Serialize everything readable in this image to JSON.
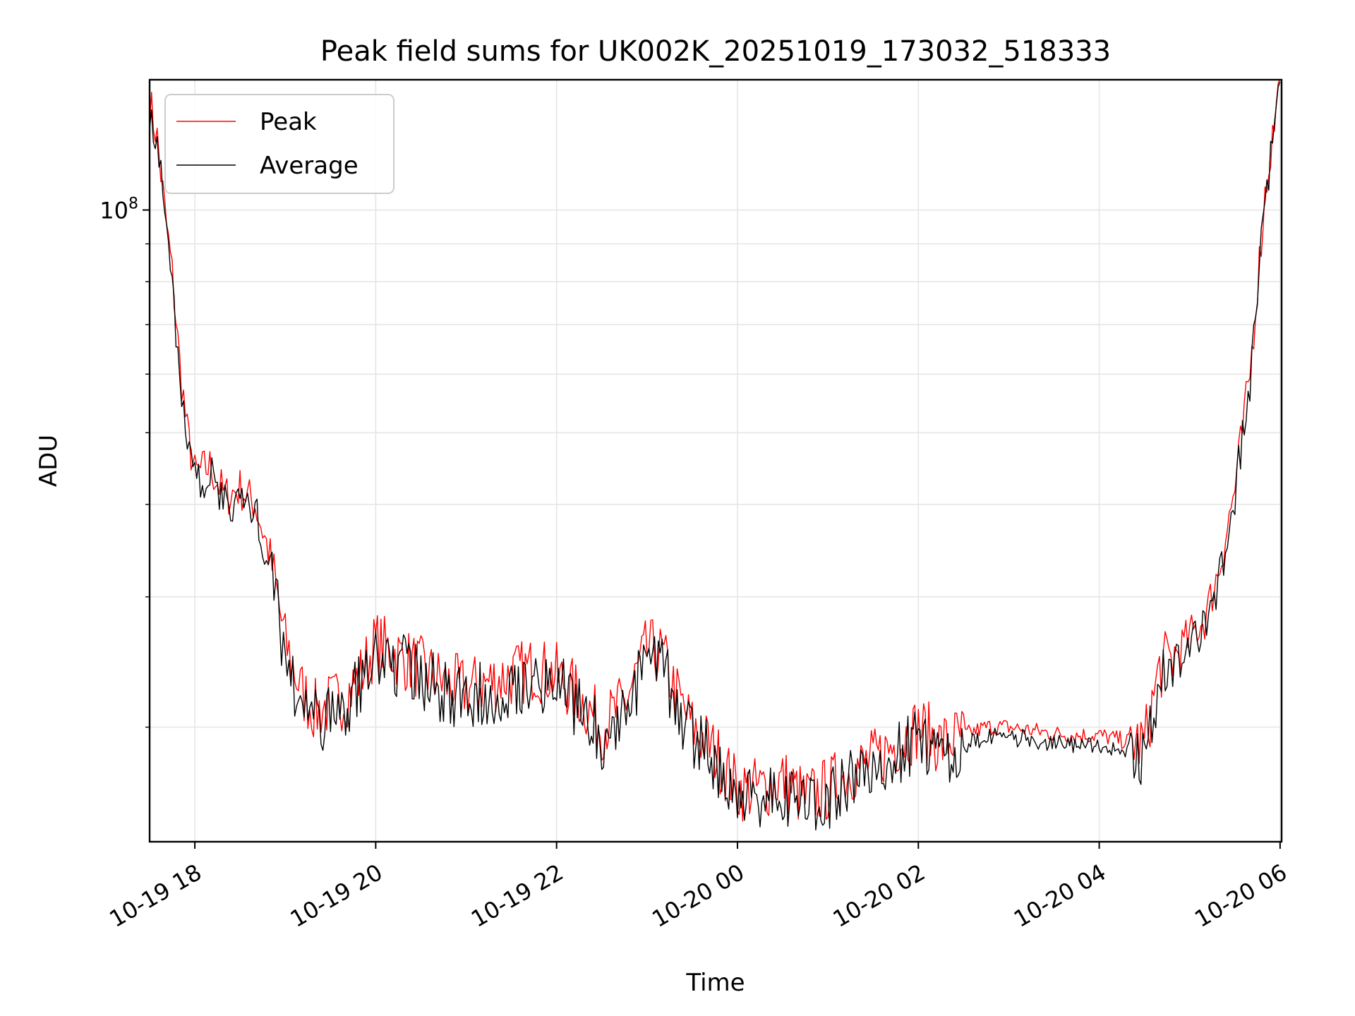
{
  "chart_data": {
    "type": "line",
    "title": "Peak field sums for UK002K_20251019_173032_518333",
    "xlabel": "Time",
    "ylabel": "ADU",
    "y_scale": "log",
    "y_tick_label": {
      "base": "10",
      "exp": "8"
    },
    "x_ticks": [
      "10-19 18",
      "10-19 20",
      "10-19 22",
      "10-20 00",
      "10-20 02",
      "10-20 04",
      "10-20 06"
    ],
    "xlim": [
      "10-19 17:30",
      "10-20 06:01"
    ],
    "ylim": [
      14000000,
      150000000
    ],
    "grid": true,
    "legend": {
      "placement": "top-left",
      "entries": [
        "Peak",
        "Average"
      ]
    },
    "colors": {
      "Peak": "#ff0000",
      "Average": "#000000"
    },
    "series": [
      {
        "name": "Peak",
        "x": [
          "10-19 17:30",
          "10-19 17:35",
          "10-19 17:40",
          "10-19 17:45",
          "10-19 17:50",
          "10-19 17:55",
          "10-19 18:00",
          "10-19 18:10",
          "10-19 18:20",
          "10-19 18:30",
          "10-19 18:40",
          "10-19 18:50",
          "10-19 19:00",
          "10-19 19:10",
          "10-19 19:20",
          "10-19 19:30",
          "10-19 19:40",
          "10-19 19:50",
          "10-19 20:00",
          "10-19 20:15",
          "10-19 20:30",
          "10-19 20:45",
          "10-19 21:00",
          "10-19 21:15",
          "10-19 21:30",
          "10-19 21:45",
          "10-19 22:00",
          "10-19 22:15",
          "10-19 22:30",
          "10-19 22:45",
          "10-19 23:00",
          "10-19 23:10",
          "10-19 23:20",
          "10-19 23:30",
          "10-19 23:45",
          "10-20 00:00",
          "10-20 00:15",
          "10-20 00:30",
          "10-20 00:45",
          "10-20 01:00",
          "10-20 01:15",
          "10-20 01:30",
          "10-20 01:45",
          "10-20 02:00",
          "10-20 02:15",
          "10-20 02:30",
          "10-20 02:45",
          "10-20 03:00",
          "10-20 03:15",
          "10-20 03:30",
          "10-20 03:45",
          "10-20 04:00",
          "10-20 04:15",
          "10-20 04:30",
          "10-20 04:40",
          "10-20 04:50",
          "10-20 05:00",
          "10-20 05:10",
          "10-20 05:20",
          "10-20 05:30",
          "10-20 05:40",
          "10-20 05:50",
          "10-20 06:00"
        ],
        "values": [
          140000000,
          125000000,
          100000000,
          82000000,
          62000000,
          50000000,
          44000000,
          45000000,
          41000000,
          42000000,
          40000000,
          34000000,
          26000000,
          22500000,
          21000000,
          21500000,
          22000000,
          23500000,
          26000000,
          25000000,
          24000000,
          23000000,
          22500000,
          23000000,
          23500000,
          24000000,
          23500000,
          22000000,
          20000000,
          21500000,
          25500000,
          25000000,
          22000000,
          20000000,
          18500000,
          16500000,
          16500000,
          17000000,
          16000000,
          16500000,
          17500000,
          18000000,
          19000000,
          20000000,
          19000000,
          19500000,
          20000000,
          20000000,
          19800000,
          19600000,
          19500000,
          19500000,
          19200000,
          19000000,
          24000000,
          25000000,
          26500000,
          28000000,
          33000000,
          42000000,
          60000000,
          105000000,
          150000000
        ]
      },
      {
        "name": "Average",
        "x": [
          "10-19 17:30",
          "10-19 17:35",
          "10-19 17:40",
          "10-19 17:45",
          "10-19 17:50",
          "10-19 17:55",
          "10-19 18:00",
          "10-19 18:10",
          "10-19 18:20",
          "10-19 18:30",
          "10-19 18:40",
          "10-19 18:50",
          "10-19 19:00",
          "10-19 19:10",
          "10-19 19:20",
          "10-19 19:30",
          "10-19 19:40",
          "10-19 19:50",
          "10-19 20:00",
          "10-19 20:15",
          "10-19 20:30",
          "10-19 20:45",
          "10-19 21:00",
          "10-19 21:15",
          "10-19 21:30",
          "10-19 21:45",
          "10-19 22:00",
          "10-19 22:15",
          "10-19 22:30",
          "10-19 22:45",
          "10-19 23:00",
          "10-19 23:10",
          "10-19 23:20",
          "10-19 23:30",
          "10-19 23:45",
          "10-20 00:00",
          "10-20 00:15",
          "10-20 00:30",
          "10-20 00:45",
          "10-20 01:00",
          "10-20 01:15",
          "10-20 01:30",
          "10-20 01:45",
          "10-20 02:00",
          "10-20 02:15",
          "10-20 02:30",
          "10-20 02:45",
          "10-20 03:00",
          "10-20 03:15",
          "10-20 03:30",
          "10-20 03:45",
          "10-20 04:00",
          "10-20 04:15",
          "10-20 04:30",
          "10-20 04:40",
          "10-20 04:50",
          "10-20 05:00",
          "10-20 05:10",
          "10-20 05:20",
          "10-20 05:30",
          "10-20 05:40",
          "10-20 05:50",
          "10-20 06:00"
        ],
        "values": [
          138000000,
          123000000,
          98000000,
          80000000,
          60000000,
          48500000,
          43000000,
          44000000,
          40000000,
          41000000,
          39000000,
          33000000,
          25000000,
          21800000,
          20300000,
          20800000,
          21300000,
          22800000,
          25200000,
          24300000,
          23300000,
          22300000,
          21800000,
          22300000,
          22800000,
          23300000,
          22800000,
          21300000,
          19400000,
          20800000,
          24700000,
          24300000,
          21300000,
          19400000,
          17900000,
          16000000,
          16000000,
          16500000,
          15500000,
          16000000,
          17000000,
          17500000,
          18400000,
          19400000,
          18400000,
          18900000,
          19400000,
          19400000,
          19200000,
          19000000,
          18900000,
          18900000,
          18600000,
          18400000,
          23300000,
          24300000,
          25700000,
          27200000,
          32000000,
          41000000,
          59000000,
          103000000,
          149000000
        ]
      }
    ]
  }
}
